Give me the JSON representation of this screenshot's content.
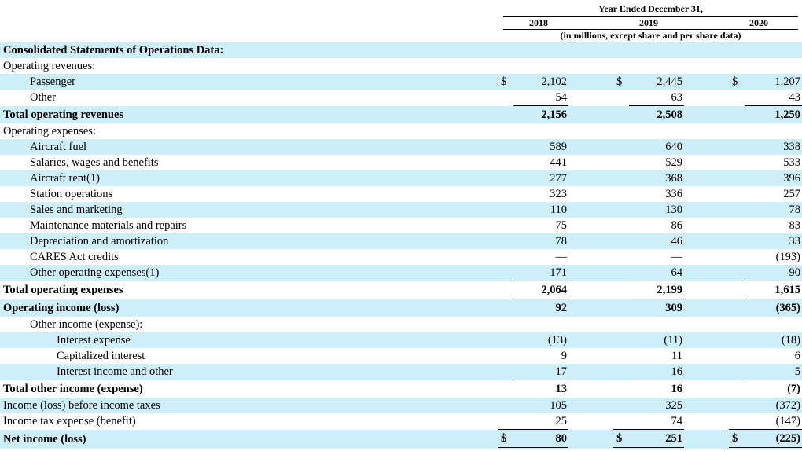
{
  "header": {
    "period": "Year Ended December 31,",
    "years": [
      "2018",
      "2019",
      "2020"
    ],
    "note": "(in millions, except share and per share data)"
  },
  "rows": [
    {
      "label": "Consolidated Statements of Operations Data:",
      "indent": 0,
      "bold": true,
      "shade": true,
      "values": [
        "",
        "",
        ""
      ]
    },
    {
      "label": "Operating revenues:",
      "indent": 0,
      "values": [
        "",
        "",
        ""
      ]
    },
    {
      "label": "Passenger",
      "indent": 1,
      "shade": true,
      "currency": true,
      "values": [
        "2,102",
        "2,445",
        "1,207"
      ]
    },
    {
      "label": "Other",
      "indent": 1,
      "values": [
        "54",
        "63",
        "43"
      ],
      "underline": true
    },
    {
      "label": "Total operating revenues",
      "indent": 0,
      "bold": true,
      "shade": true,
      "tall": true,
      "values": [
        "2,156",
        "2,508",
        "1,250"
      ]
    },
    {
      "label": "Operating expenses:",
      "indent": 0,
      "values": [
        "",
        "",
        ""
      ]
    },
    {
      "label": "Aircraft fuel",
      "indent": 1,
      "shade": true,
      "values": [
        "589",
        "640",
        "338"
      ]
    },
    {
      "label": "Salaries, wages and benefits",
      "indent": 1,
      "values": [
        "441",
        "529",
        "533"
      ]
    },
    {
      "label": "Aircraft rent(1)",
      "indent": 1,
      "shade": true,
      "values": [
        "277",
        "368",
        "396"
      ]
    },
    {
      "label": "Station operations",
      "indent": 1,
      "values": [
        "323",
        "336",
        "257"
      ]
    },
    {
      "label": "Sales and marketing",
      "indent": 1,
      "shade": true,
      "values": [
        "110",
        "130",
        "78"
      ]
    },
    {
      "label": "Maintenance materials and repairs",
      "indent": 1,
      "values": [
        "75",
        "86",
        "83"
      ]
    },
    {
      "label": "Depreciation and amortization",
      "indent": 1,
      "shade": true,
      "values": [
        "78",
        "46",
        "33"
      ]
    },
    {
      "label": "CARES Act credits",
      "indent": 1,
      "values": [
        "—",
        "—",
        "(193)"
      ]
    },
    {
      "label": "Other operating expenses(1)",
      "indent": 1,
      "shade": true,
      "values": [
        "171",
        "64",
        "90"
      ],
      "underline": true
    },
    {
      "label": "Total operating expenses",
      "indent": 0,
      "bold": true,
      "tall": true,
      "values": [
        "2,064",
        "2,199",
        "1,615"
      ],
      "underline": true
    },
    {
      "label": "Operating income (loss)",
      "indent": 0,
      "bold": true,
      "shade": true,
      "tall": true,
      "values": [
        "92",
        "309",
        "(365)"
      ]
    },
    {
      "label": "Other income (expense):",
      "indent": 1,
      "values": [
        "",
        "",
        ""
      ]
    },
    {
      "label": "Interest expense",
      "indent": 2,
      "shade": true,
      "values": [
        "(13)",
        "(11)",
        "(18)"
      ]
    },
    {
      "label": "Capitalized interest",
      "indent": 2,
      "values": [
        "9",
        "11",
        "6"
      ]
    },
    {
      "label": "Interest income and other",
      "indent": 2,
      "shade": true,
      "values": [
        "17",
        "16",
        "5"
      ],
      "underline": true
    },
    {
      "label": "Total other income (expense)",
      "indent": 0,
      "bold": true,
      "tall": true,
      "values": [
        "13",
        "16",
        "(7)"
      ]
    },
    {
      "label": "Income (loss) before income taxes",
      "indent": 0,
      "shade": true,
      "values": [
        "105",
        "325",
        "(372)"
      ]
    },
    {
      "label": "Income tax expense (benefit)",
      "indent": 0,
      "values": [
        "25",
        "74",
        "(147)"
      ],
      "underline": true
    },
    {
      "label": "Net income (loss)",
      "indent": 0,
      "bold": true,
      "shade": true,
      "tall": true,
      "currency": true,
      "doubleline": true,
      "values": [
        "80",
        "251",
        "(225)"
      ]
    }
  ],
  "currency_symbol": "$"
}
